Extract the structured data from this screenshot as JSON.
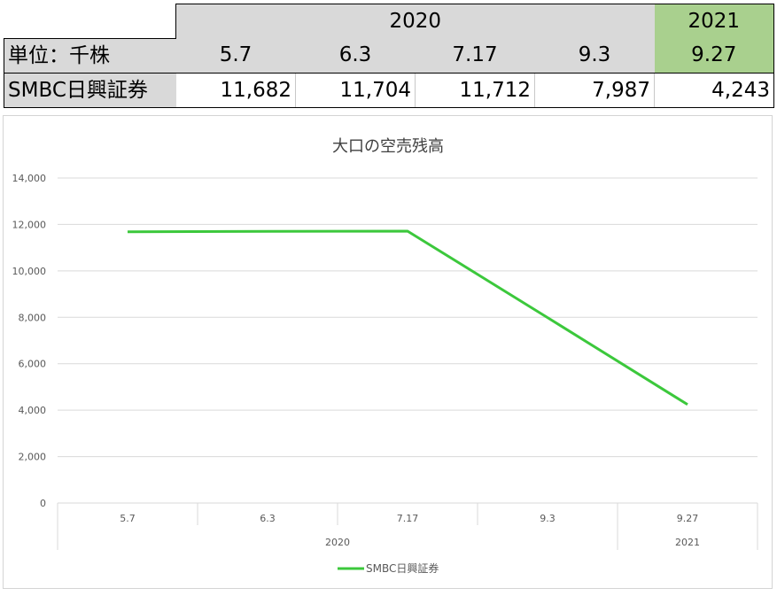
{
  "table": {
    "unit_label": "単位：千株",
    "series_label": "SMBC日興証券",
    "year_groups": [
      {
        "year": "2020",
        "span": 4
      },
      {
        "year": "2021",
        "span": 1
      }
    ],
    "dates": [
      "5.7",
      "6.3",
      "7.17",
      "9.3",
      "9.27"
    ],
    "values": [
      "11,682",
      "11,704",
      "11,712",
      "7,987",
      "4,243"
    ]
  },
  "chart_data": {
    "type": "line",
    "title": "大口の空売残高",
    "categories": [
      "5.7",
      "6.3",
      "7.17",
      "9.3",
      "9.27"
    ],
    "category_groups": [
      {
        "label": "2020",
        "from": 0,
        "to": 3
      },
      {
        "label": "2021",
        "from": 4,
        "to": 4
      }
    ],
    "series": [
      {
        "name": "SMBC日興証券",
        "values": [
          11682,
          11704,
          11712,
          7987,
          4243
        ],
        "color": "#3cc83c"
      }
    ],
    "ylim": [
      0,
      14000
    ],
    "yticks": [
      0,
      2000,
      4000,
      6000,
      8000,
      10000,
      12000,
      14000
    ],
    "ytick_labels": [
      "0",
      "2,000",
      "4,000",
      "6,000",
      "8,000",
      "10,000",
      "12,000",
      "14,000"
    ],
    "grid": true,
    "legend": "bottom",
    "xlabel": "",
    "ylabel": ""
  }
}
